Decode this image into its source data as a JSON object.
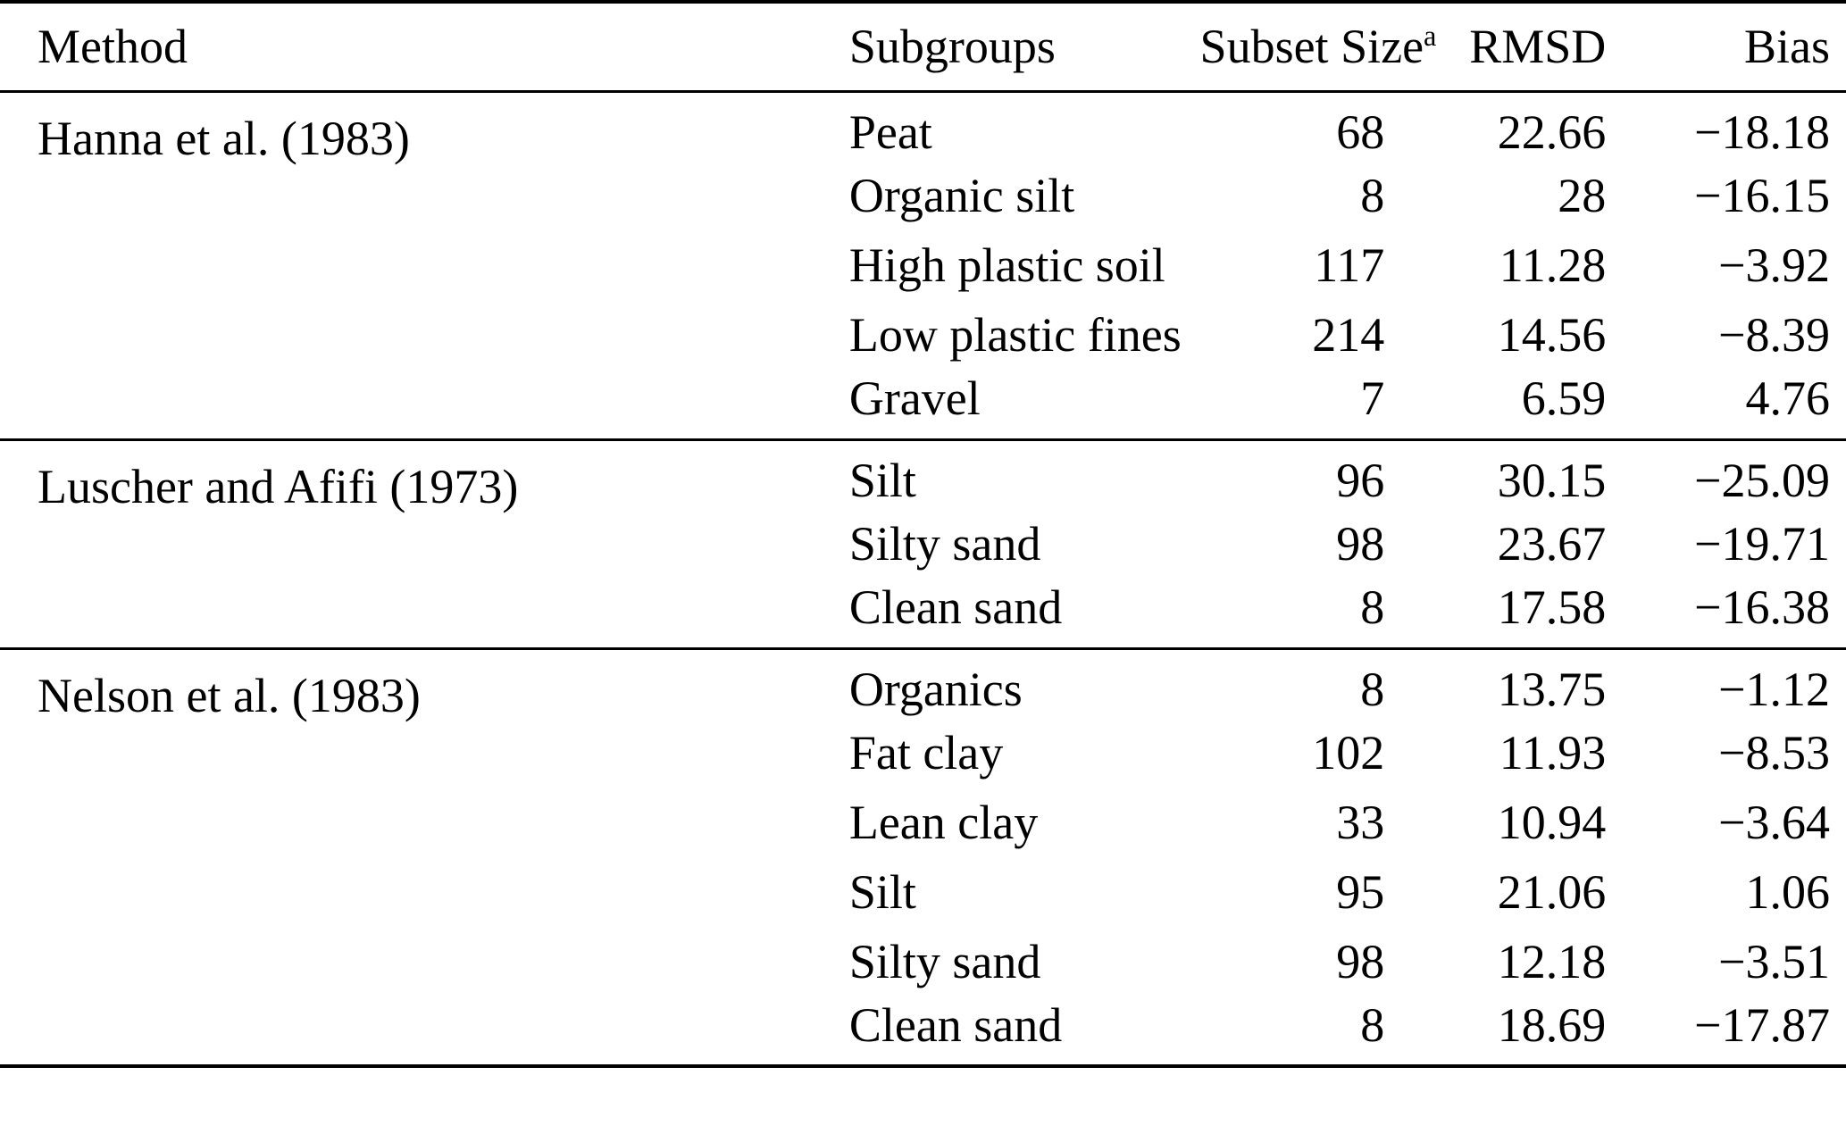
{
  "table": {
    "headers": [
      "Method",
      "Subgroups",
      "Subset Size",
      "RMSD",
      "Bias"
    ],
    "footnote_marker": "a",
    "groups": [
      {
        "method": "Hanna et al. (1983)",
        "rows": [
          {
            "subgroup": "Peat",
            "size": "68",
            "rmsd": "22.66",
            "bias": "−18.18"
          },
          {
            "subgroup": "Organic silt",
            "size": "8",
            "rmsd": "28",
            "bias": "−16.15"
          },
          {
            "subgroup": "High plastic soil",
            "size": "117",
            "rmsd": "11.28",
            "bias": "−3.92"
          },
          {
            "subgroup": "Low plastic fines",
            "size": "214",
            "rmsd": "14.56",
            "bias": "−8.39"
          },
          {
            "subgroup": "Gravel",
            "size": "7",
            "rmsd": "6.59",
            "bias": "4.76"
          }
        ]
      },
      {
        "method": "Luscher and Afifi (1973)",
        "rows": [
          {
            "subgroup": "Silt",
            "size": "96",
            "rmsd": "30.15",
            "bias": "−25.09"
          },
          {
            "subgroup": "Silty sand",
            "size": "98",
            "rmsd": "23.67",
            "bias": "−19.71"
          },
          {
            "subgroup": "Clean sand",
            "size": "8",
            "rmsd": "17.58",
            "bias": "−16.38"
          }
        ]
      },
      {
        "method": "Nelson et al. (1983)",
        "rows": [
          {
            "subgroup": "Organics",
            "size": "8",
            "rmsd": "13.75",
            "bias": "−1.12"
          },
          {
            "subgroup": "Fat clay",
            "size": "102",
            "rmsd": "11.93",
            "bias": "−8.53"
          },
          {
            "subgroup": "Lean clay",
            "size": "33",
            "rmsd": "10.94",
            "bias": "−3.64"
          },
          {
            "subgroup": "Silt",
            "size": "95",
            "rmsd": "21.06",
            "bias": "1.06"
          },
          {
            "subgroup": "Silty sand",
            "size": "98",
            "rmsd": "12.18",
            "bias": "−3.51"
          },
          {
            "subgroup": "Clean sand",
            "size": "8",
            "rmsd": "18.69",
            "bias": "−17.87"
          }
        ]
      }
    ]
  }
}
